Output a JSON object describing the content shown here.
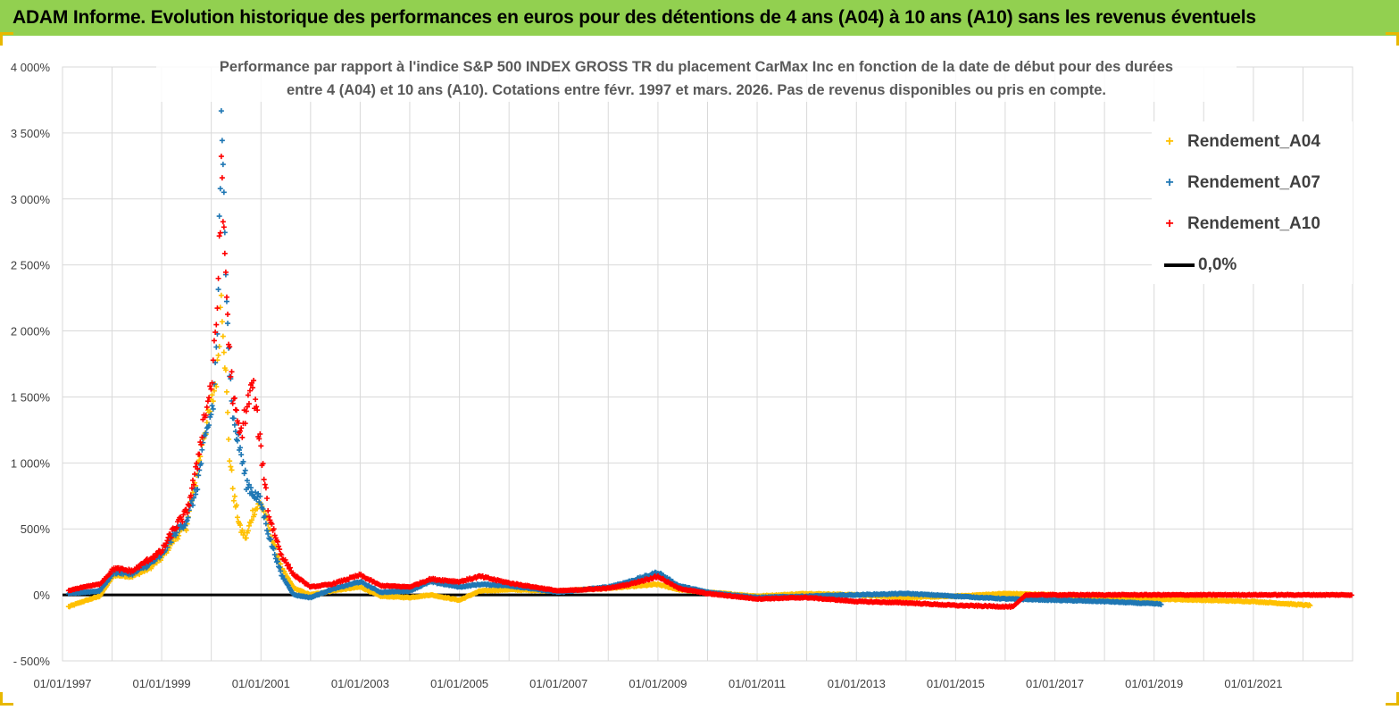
{
  "banner": {
    "title": "ADAM Informe. Evolution historique des performances en euros pour des détentions de 4 ans (A04) à 10 ans (A10) sans les revenus éventuels"
  },
  "colors": {
    "banner_bg": "#92d050",
    "A04": "#ffc000",
    "A07": "#1f77b4",
    "A10": "#ff0000",
    "baseline": "#000000",
    "grid": "#d9d9d9"
  },
  "chart_data": {
    "type": "scatter",
    "title_lines": [
      "Performance par rapport à l'indice S&P 500 INDEX GROSS TR  du placement CarMax Inc en fonction de la date de début pour des durées",
      "entre 4 (A04) et 10 ans (A10). Cotations entre févr. 1997 et mars. 2026. Pas de revenus disponibles ou pris en compte."
    ],
    "xlabel": "",
    "ylabel": "",
    "x_range": [
      "1997-01-01",
      "2023-01-01"
    ],
    "ylim": [
      -500,
      4000
    ],
    "y_ticks": [
      -500,
      0,
      500,
      1000,
      1500,
      2000,
      2500,
      3000,
      3500,
      4000
    ],
    "y_tick_labels": [
      "- 500%",
      "0%",
      "500%",
      "1 000%",
      "1 500%",
      "2 000%",
      "2 500%",
      "3 000%",
      "3 500%",
      "4 000%"
    ],
    "x_ticks": [
      "1997-01-01",
      "1999-01-01",
      "2001-01-01",
      "2003-01-01",
      "2005-01-01",
      "2007-01-01",
      "2009-01-01",
      "2011-01-01",
      "2013-01-01",
      "2015-01-01",
      "2017-01-01",
      "2019-01-01",
      "2021-01-01"
    ],
    "x_tick_labels": [
      "01/01/1997",
      "01/01/1999",
      "01/01/2001",
      "01/01/2003",
      "01/01/2005",
      "01/01/2007",
      "01/01/2009",
      "01/01/2011",
      "01/01/2013",
      "01/01/2015",
      "01/01/2017",
      "01/01/2019",
      "01/01/2021"
    ],
    "grid": true,
    "legend_position": "top-right",
    "marker": "+",
    "series": [
      {
        "name": "Rendement_A04",
        "key": "A04",
        "points": [
          [
            "1997-02-15",
            -90
          ],
          [
            "1997-06-01",
            -50
          ],
          [
            "1997-10-01",
            -10
          ],
          [
            "1998-01-15",
            150
          ],
          [
            "1998-06-01",
            140
          ],
          [
            "1998-10-01",
            200
          ],
          [
            "1999-01-01",
            280
          ],
          [
            "1999-04-01",
            420
          ],
          [
            "1999-07-01",
            520
          ],
          [
            "1999-09-15",
            900
          ],
          [
            "1999-11-01",
            1200
          ],
          [
            "1999-12-15",
            1350
          ],
          [
            "2000-01-15",
            1500
          ],
          [
            "2000-02-15",
            1700
          ],
          [
            "2000-03-15",
            2300
          ],
          [
            "2000-04-10",
            1800
          ],
          [
            "2000-05-15",
            1050
          ],
          [
            "2000-06-15",
            750
          ],
          [
            "2000-08-01",
            500
          ],
          [
            "2000-09-15",
            430
          ],
          [
            "2000-11-01",
            620
          ],
          [
            "2001-01-01",
            700
          ],
          [
            "2001-03-01",
            500
          ],
          [
            "2001-06-01",
            200
          ],
          [
            "2001-09-01",
            50
          ],
          [
            "2002-01-01",
            0
          ],
          [
            "2002-06-01",
            30
          ],
          [
            "2003-01-01",
            60
          ],
          [
            "2003-06-01",
            -10
          ],
          [
            "2004-01-01",
            -20
          ],
          [
            "2004-06-01",
            0
          ],
          [
            "2005-01-01",
            -40
          ],
          [
            "2005-06-01",
            30
          ],
          [
            "2006-01-01",
            40
          ],
          [
            "2007-01-01",
            30
          ],
          [
            "2008-01-01",
            50
          ],
          [
            "2009-01-01",
            80
          ],
          [
            "2009-06-01",
            40
          ],
          [
            "2010-01-01",
            20
          ],
          [
            "2011-01-01",
            -10
          ],
          [
            "2012-01-01",
            10
          ],
          [
            "2013-01-01",
            0
          ],
          [
            "2014-01-01",
            -20
          ],
          [
            "2015-01-01",
            -10
          ],
          [
            "2016-01-01",
            10
          ],
          [
            "2017-01-01",
            0
          ],
          [
            "2018-01-01",
            -20
          ],
          [
            "2019-01-01",
            -30
          ],
          [
            "2020-01-01",
            -40
          ],
          [
            "2021-01-01",
            -50
          ],
          [
            "2022-03-01",
            -80
          ]
        ]
      },
      {
        "name": "Rendement_A07",
        "key": "A07",
        "points": [
          [
            "1997-02-15",
            10
          ],
          [
            "1997-06-01",
            20
          ],
          [
            "1997-10-01",
            30
          ],
          [
            "1998-01-15",
            170
          ],
          [
            "1998-06-01",
            160
          ],
          [
            "1998-10-01",
            230
          ],
          [
            "1999-01-01",
            300
          ],
          [
            "1999-04-01",
            460
          ],
          [
            "1999-07-01",
            560
          ],
          [
            "1999-09-15",
            800
          ],
          [
            "1999-11-01",
            1100
          ],
          [
            "1999-12-15",
            1300
          ],
          [
            "2000-01-15",
            1450
          ],
          [
            "2000-02-15",
            2000
          ],
          [
            "2000-03-15",
            3500
          ],
          [
            "2000-04-10",
            2800
          ],
          [
            "2000-05-15",
            1700
          ],
          [
            "2000-06-15",
            1300
          ],
          [
            "2000-08-01",
            1100
          ],
          [
            "2000-09-15",
            850
          ],
          [
            "2000-11-01",
            780
          ],
          [
            "2001-01-01",
            700
          ],
          [
            "2001-03-01",
            450
          ],
          [
            "2001-06-01",
            150
          ],
          [
            "2001-09-01",
            0
          ],
          [
            "2002-01-01",
            -20
          ],
          [
            "2002-06-01",
            40
          ],
          [
            "2003-01-01",
            100
          ],
          [
            "2003-06-01",
            20
          ],
          [
            "2004-01-01",
            30
          ],
          [
            "2004-06-01",
            100
          ],
          [
            "2005-01-01",
            60
          ],
          [
            "2005-06-01",
            80
          ],
          [
            "2006-01-01",
            70
          ],
          [
            "2007-01-01",
            20
          ],
          [
            "2008-01-01",
            60
          ],
          [
            "2008-06-01",
            100
          ],
          [
            "2009-01-01",
            170
          ],
          [
            "2009-06-01",
            70
          ],
          [
            "2010-01-01",
            20
          ],
          [
            "2011-01-01",
            -20
          ],
          [
            "2012-01-01",
            -10
          ],
          [
            "2013-01-01",
            0
          ],
          [
            "2014-01-01",
            10
          ],
          [
            "2015-01-01",
            -10
          ],
          [
            "2016-01-01",
            -30
          ],
          [
            "2017-01-01",
            -40
          ],
          [
            "2018-01-01",
            -50
          ],
          [
            "2019-03-01",
            -70
          ]
        ]
      },
      {
        "name": "Rendement_A10",
        "key": "A10",
        "points": [
          [
            "1997-02-15",
            30
          ],
          [
            "1997-06-01",
            60
          ],
          [
            "1997-10-01",
            80
          ],
          [
            "1998-01-15",
            200
          ],
          [
            "1998-06-01",
            180
          ],
          [
            "1998-10-01",
            270
          ],
          [
            "1999-01-01",
            330
          ],
          [
            "1999-04-01",
            500
          ],
          [
            "1999-07-01",
            620
          ],
          [
            "1999-09-15",
            950
          ],
          [
            "1999-11-01",
            1300
          ],
          [
            "1999-12-15",
            1500
          ],
          [
            "2000-01-15",
            1700
          ],
          [
            "2000-02-15",
            2200
          ],
          [
            "2000-03-15",
            3150
          ],
          [
            "2000-04-10",
            2600
          ],
          [
            "2000-05-15",
            1800
          ],
          [
            "2000-06-15",
            1450
          ],
          [
            "2000-08-01",
            1200
          ],
          [
            "2000-09-15",
            1400
          ],
          [
            "2000-11-01",
            1600
          ],
          [
            "2001-01-01",
            1100
          ],
          [
            "2001-03-01",
            600
          ],
          [
            "2001-06-01",
            300
          ],
          [
            "2001-09-01",
            150
          ],
          [
            "2002-01-01",
            60
          ],
          [
            "2002-06-01",
            80
          ],
          [
            "2003-01-01",
            150
          ],
          [
            "2003-06-01",
            70
          ],
          [
            "2004-01-01",
            60
          ],
          [
            "2004-06-01",
            120
          ],
          [
            "2005-01-01",
            100
          ],
          [
            "2005-06-01",
            140
          ],
          [
            "2006-01-01",
            90
          ],
          [
            "2007-01-01",
            30
          ],
          [
            "2008-01-01",
            50
          ],
          [
            "2008-06-01",
            80
          ],
          [
            "2009-01-01",
            140
          ],
          [
            "2009-06-01",
            50
          ],
          [
            "2010-01-01",
            10
          ],
          [
            "2011-01-01",
            -30
          ],
          [
            "2012-01-01",
            -20
          ],
          [
            "2013-01-01",
            -50
          ],
          [
            "2014-01-01",
            -60
          ],
          [
            "2015-01-01",
            -80
          ],
          [
            "2016-03-01",
            -90
          ],
          [
            "2016-06-01",
            0
          ],
          [
            "2018-01-01",
            0
          ],
          [
            "2020-01-01",
            0
          ],
          [
            "2023-01-01",
            0
          ]
        ]
      }
    ],
    "baseline": {
      "name": "0,0%",
      "y": 0
    }
  }
}
